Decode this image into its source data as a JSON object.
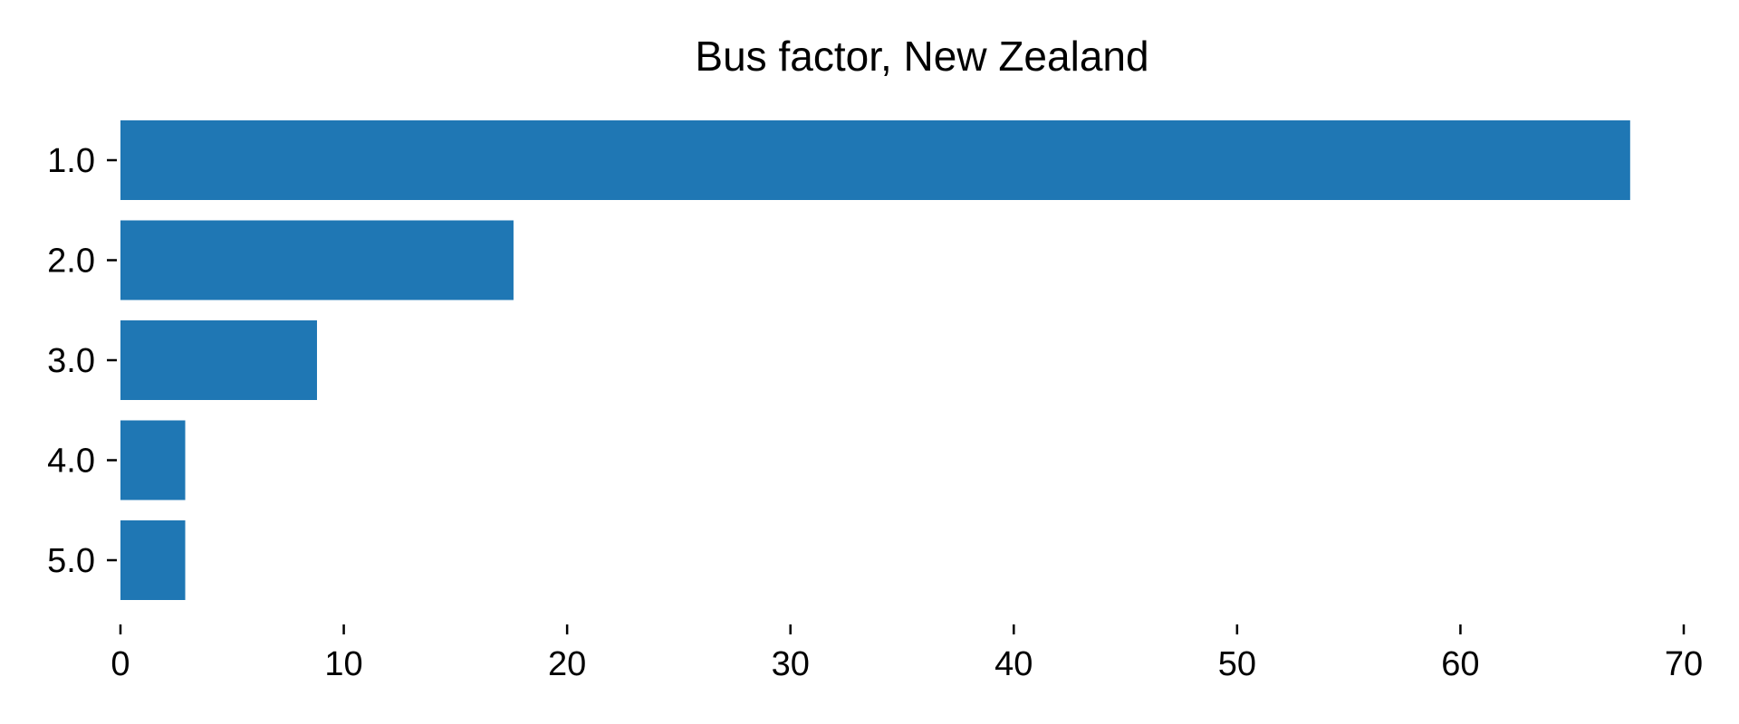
{
  "chart_data": {
    "type": "bar",
    "orientation": "horizontal",
    "title": "Bus factor, New Zealand",
    "xlabel": "",
    "ylabel": "",
    "categories": [
      "1.0",
      "2.0",
      "3.0",
      "4.0",
      "5.0"
    ],
    "values": [
      67.6,
      17.6,
      8.8,
      2.9,
      2.9
    ],
    "xlim": [
      0,
      70
    ],
    "xticks": [
      0,
      10,
      20,
      30,
      40,
      50,
      60,
      70
    ],
    "grid": false,
    "legend": "none",
    "bar_color": "#1f77b4"
  }
}
